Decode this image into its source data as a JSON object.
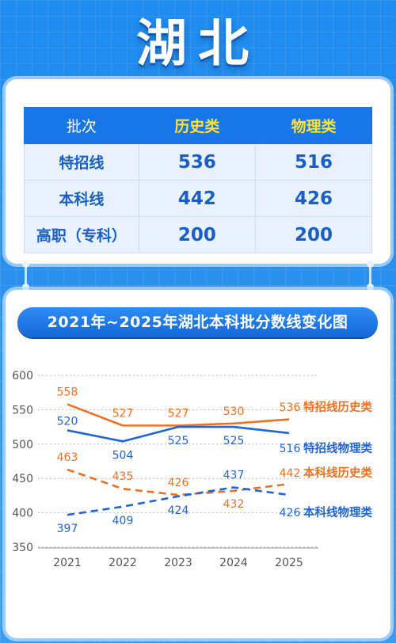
{
  "header": {
    "title": "湖北"
  },
  "table": {
    "headers": [
      "批次",
      "历史类",
      "物理类"
    ],
    "rows": [
      [
        "特招线",
        "536",
        "516"
      ],
      [
        "本科线",
        "442",
        "426"
      ],
      [
        "高职（专科）",
        "200",
        "200"
      ]
    ]
  },
  "chart_data": {
    "type": "line",
    "title": "2021年~2025年湖北本科批分数线变化图",
    "categories": [
      "2021",
      "2022",
      "2023",
      "2024",
      "2025"
    ],
    "yticks": [
      350,
      400,
      450,
      500,
      550,
      600
    ],
    "ylim": [
      350,
      600
    ],
    "grid": "horizontal dotted",
    "series": [
      {
        "name": "特招线历史类",
        "values": [
          558,
          527,
          527,
          530,
          536
        ],
        "color": "#f07020",
        "style": "solid"
      },
      {
        "name": "特招线物理类",
        "values": [
          520,
          504,
          525,
          525,
          516
        ],
        "color": "#1f64d8",
        "style": "solid"
      },
      {
        "name": "本科线历史类",
        "values": [
          463,
          435,
          426,
          432,
          442
        ],
        "color": "#f07020",
        "style": "dashed"
      },
      {
        "name": "本科线物理类",
        "values": [
          397,
          409,
          424,
          437,
          426
        ],
        "color": "#1f64d8",
        "style": "dashed"
      }
    ]
  }
}
